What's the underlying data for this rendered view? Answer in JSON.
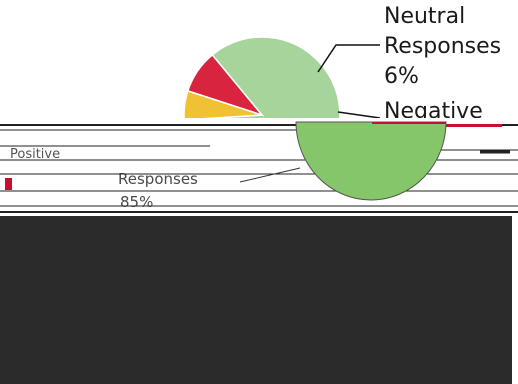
{
  "chart_data": {
    "type": "pie",
    "title": "",
    "slices": [
      {
        "label": "Positive",
        "value": 85,
        "color": "#a6d49a"
      },
      {
        "label": "Neutral Responses",
        "value": 6,
        "color": "#f0c233"
      },
      {
        "label": "Negative",
        "value": 9,
        "color": "#d8243f"
      }
    ],
    "labels_visible": {
      "neutral_line1": "Neutral",
      "neutral_line2": "Responses",
      "neutral_line3": "6%",
      "negative_partial": "Negative",
      "garbled_left_1": "Positive",
      "garbled_left_2": "Responses",
      "garbled_left_3": "85%"
    },
    "legend": "none"
  },
  "colors": {
    "panel_dark": "#2b2b2b",
    "positive_overlay": "#86c66a",
    "negative_overlay": "#c8102e",
    "leader_line": "#111111"
  }
}
